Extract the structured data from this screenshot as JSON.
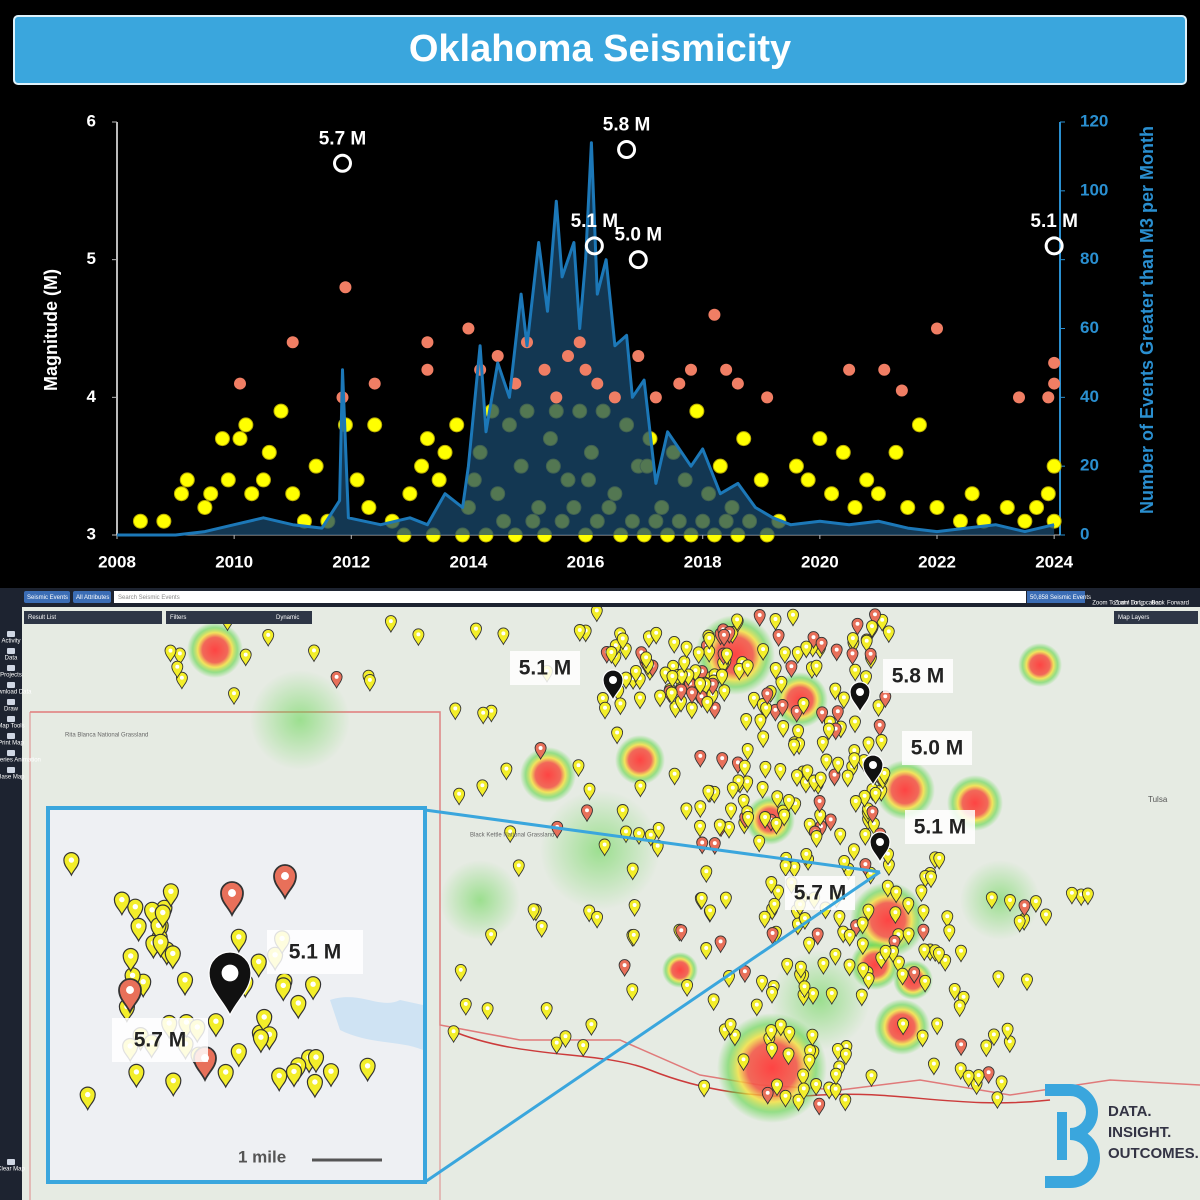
{
  "chart_data": {
    "type": "scatter",
    "title": "Oklahoma Seismicity",
    "y_label": "Magnitude (M)",
    "y2_label": "Number of Events Greater than M3 per Month",
    "xlim": [
      2008,
      2024.1
    ],
    "xticks": [
      2008,
      2010,
      2012,
      2014,
      2016,
      2018,
      2020,
      2022,
      2024
    ],
    "ylim": [
      3,
      6
    ],
    "yticks": [
      3,
      4,
      5,
      6
    ],
    "y2lim": [
      0,
      120
    ],
    "y2ticks": [
      0,
      20,
      40,
      60,
      80,
      100,
      120
    ],
    "series": [
      {
        "type": "scatter",
        "color": "#ffff00",
        "x": [
          2008.4,
          2008.8,
          2009.1,
          2009.2,
          2009.5,
          2009.6,
          2009.8,
          2009.9,
          2010.1,
          2010.2,
          2010.3,
          2010.5,
          2010.6,
          2010.8,
          2011.0,
          2011.2,
          2011.4,
          2011.6,
          2011.9,
          2012.1,
          2012.3,
          2012.4,
          2012.7,
          2013.0,
          2013.2,
          2013.3,
          2013.5,
          2013.6,
          2013.8,
          2014.0,
          2014.2,
          2014.4,
          2014.5,
          2014.7,
          2014.9,
          2015.0,
          2015.2,
          2015.4,
          2015.5,
          2015.7,
          2015.9,
          2016.1,
          2016.3,
          2016.5,
          2016.7,
          2016.9,
          2017.1,
          2017.3,
          2017.5,
          2017.7,
          2017.9,
          2018.1,
          2018.3,
          2018.5,
          2018.7,
          2019.0,
          2019.3,
          2019.6,
          2019.8,
          2020.0,
          2020.2,
          2020.4,
          2020.6,
          2020.8,
          2021.0,
          2021.3,
          2021.5,
          2021.7,
          2022.0,
          2022.4,
          2022.6,
          2022.8,
          2023.2,
          2023.5,
          2023.7,
          2024.0,
          2024.0,
          2023.9,
          2014.3,
          2014.6,
          2014.8,
          2015.1,
          2015.3,
          2015.6,
          2015.8,
          2016.0,
          2016.2,
          2016.4,
          2016.6,
          2016.8,
          2017.0,
          2017.2,
          2017.4,
          2017.6,
          2017.8,
          2018.0,
          2018.2,
          2018.4,
          2018.6,
          2018.8,
          2019.1,
          2014.1,
          2015.45,
          2016.05,
          2017.05,
          2013.9,
          2013.4,
          2012.9
        ],
        "values": [
          3.1,
          3.1,
          3.3,
          3.4,
          3.2,
          3.3,
          3.7,
          3.4,
          3.7,
          3.8,
          3.3,
          3.4,
          3.6,
          3.9,
          3.3,
          3.1,
          3.5,
          3.1,
          3.8,
          3.4,
          3.2,
          3.8,
          3.1,
          3.3,
          3.5,
          3.7,
          3.4,
          3.6,
          3.8,
          3.2,
          3.6,
          3.9,
          3.3,
          3.8,
          3.5,
          3.9,
          3.2,
          3.7,
          3.9,
          3.4,
          3.9,
          3.6,
          3.9,
          3.3,
          3.8,
          3.5,
          3.7,
          3.2,
          3.6,
          3.4,
          3.9,
          3.3,
          3.5,
          3.2,
          3.7,
          3.4,
          3.1,
          3.5,
          3.4,
          3.7,
          3.3,
          3.6,
          3.2,
          3.4,
          3.3,
          3.6,
          3.2,
          3.8,
          3.2,
          3.1,
          3.3,
          3.1,
          3.2,
          3.1,
          3.2,
          3.1,
          3.5,
          3.3,
          3.0,
          3.1,
          3.0,
          3.1,
          3.0,
          3.1,
          3.2,
          3.0,
          3.1,
          3.2,
          3.0,
          3.1,
          3.0,
          3.1,
          3.0,
          3.1,
          3.0,
          3.1,
          3.0,
          3.1,
          3.0,
          3.1,
          3.0,
          3.4,
          3.5,
          3.4,
          3.5,
          3.0,
          3.0,
          3.0
        ]
      },
      {
        "type": "line",
        "axis": "y2",
        "color": "#1c78b8",
        "x": [
          2008.0,
          2009.0,
          2009.5,
          2010.0,
          2010.5,
          2011.0,
          2011.5,
          2011.8,
          2011.85,
          2011.95,
          2012.5,
          2013.0,
          2013.3,
          2013.6,
          2013.9,
          2014.0,
          2014.2,
          2014.3,
          2014.5,
          2014.7,
          2014.9,
          2015.0,
          2015.2,
          2015.35,
          2015.5,
          2015.6,
          2015.8,
          2015.9,
          2016.0,
          2016.1,
          2016.2,
          2016.35,
          2016.5,
          2016.7,
          2016.8,
          2017.0,
          2017.2,
          2017.4,
          2017.6,
          2017.8,
          2018.0,
          2018.3,
          2018.6,
          2018.9,
          2019.2,
          2019.5,
          2020.0,
          2020.5,
          2021.0,
          2021.5,
          2022.0,
          2022.5,
          2023.0,
          2023.5,
          2024.0
        ],
        "values": [
          0,
          0,
          1,
          3,
          5,
          3,
          2,
          10,
          48,
          5,
          3,
          5,
          3,
          12,
          8,
          20,
          55,
          30,
          50,
          40,
          70,
          55,
          85,
          65,
          97,
          75,
          85,
          60,
          80,
          114,
          70,
          80,
          55,
          58,
          40,
          45,
          15,
          30,
          25,
          20,
          25,
          12,
          15,
          8,
          5,
          3,
          4,
          3,
          4,
          2,
          1,
          2,
          3,
          1,
          3
        ]
      },
      {
        "type": "scatter",
        "color": "#f07e64",
        "x": [
          2010.1,
          2011.0,
          2011.9,
          2011.85,
          2012.4,
          2013.3,
          2013.3,
          2014.0,
          2014.2,
          2014.5,
          2014.8,
          2015.0,
          2015.3,
          2015.5,
          2015.7,
          2015.9,
          2016.0,
          2016.2,
          2016.5,
          2016.9,
          2017.2,
          2017.6,
          2017.8,
          2018.2,
          2018.4,
          2018.6,
          2019.1,
          2020.5,
          2021.1,
          2021.4,
          2022.0,
          2023.4,
          2023.9,
          2024.0,
          2024.0
        ],
        "values": [
          4.1,
          4.4,
          4.8,
          4.0,
          4.1,
          4.4,
          4.2,
          4.5,
          4.2,
          4.3,
          4.1,
          4.4,
          4.2,
          4.0,
          4.3,
          4.4,
          4.2,
          4.1,
          4.0,
          4.3,
          4.0,
          4.1,
          4.2,
          4.6,
          4.2,
          4.1,
          4.0,
          4.2,
          4.2,
          4.05,
          4.5,
          4.0,
          4.0,
          4.1,
          4.25
        ]
      },
      {
        "type": "highlight",
        "color": "#ffffff",
        "x": [
          2011.85,
          2016.7,
          2016.15,
          2016.9,
          2024.0
        ],
        "values": [
          5.7,
          5.8,
          5.1,
          5.0,
          5.1
        ],
        "value_labels": [
          "5.7 M",
          "5.8 M",
          "5.1 M",
          "5.0 M",
          "5.1 M"
        ]
      }
    ]
  },
  "map": {
    "toolbar": {
      "layer": "Seismic Events",
      "attributes": "All Attributes",
      "search": "Search Seismic Events",
      "count": "50,858 Seismic Events",
      "buttons": [
        "Zoom To Lat / Long",
        "Zoom To Location",
        "Back",
        "Forward"
      ]
    },
    "panels": [
      "Result List",
      "Filters",
      "Dynamic",
      "Map Layers"
    ],
    "sidebar": [
      "Activity",
      "Data",
      "Projects",
      "Download Data",
      "Draw",
      "Map Tools",
      "Print Map",
      "Time Series Animation",
      "Base Map",
      "Clear Map"
    ],
    "labels": [
      "5.1 M",
      "5.8 M",
      "5.0 M",
      "5.1 M",
      "5.7 M"
    ],
    "places": [
      "Tulsa",
      "Rita Blanca National Grassland",
      "Black Kettle National Grassland"
    ],
    "inset": {
      "labels": [
        "5.1 M",
        "5.7 M"
      ],
      "scale": "1 mile"
    },
    "logo": [
      "DATA.",
      "INSIGHT.",
      "OUTCOMES."
    ]
  }
}
